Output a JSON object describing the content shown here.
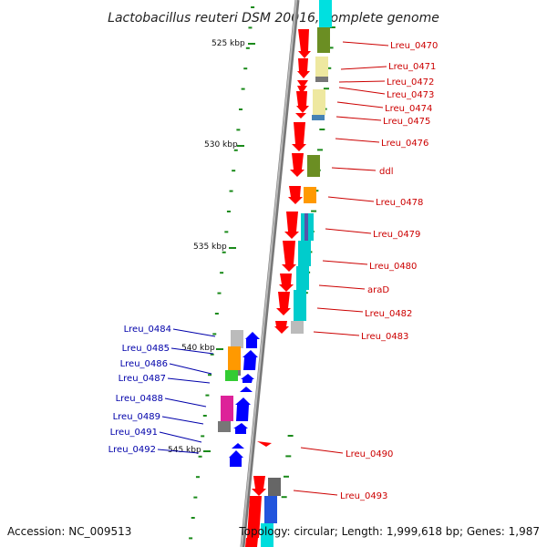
{
  "title": "Lactobacillus reuteri DSM 20016, complete genome",
  "accession": "Accession: NC_009513",
  "topology": "Topology: circular; Length: 1,999,618 bp; Genes: 1,987",
  "kbp_labels": [
    "525 kbp",
    "530 kbp",
    "535 kbp",
    "540 kbp",
    "545 kbp"
  ],
  "colors": {
    "forward_strand": "#ff0000",
    "reverse_strand": "#0000ff",
    "forward_label": "#cc0000",
    "reverse_label": "#0000aa",
    "backbone": "#888888",
    "tick": "#1a8a1a"
  },
  "forward_genes": [
    "Lreu_0470",
    "Lreu_0471",
    "Lreu_0472",
    "Lreu_0473",
    "Lreu_0474",
    "Lreu_0475",
    "Lreu_0476",
    "ddl",
    "Lreu_0478",
    "Lreu_0479",
    "Lreu_0480",
    "araD",
    "Lreu_0482",
    "Lreu_0483",
    "Lreu_0490",
    "Lreu_0493"
  ],
  "reverse_genes": [
    "Lreu_0484",
    "Lreu_0485",
    "Lreu_0486",
    "Lreu_0487",
    "Lreu_0488",
    "Lreu_0489",
    "Lreu_0491",
    "Lreu_0492"
  ]
}
